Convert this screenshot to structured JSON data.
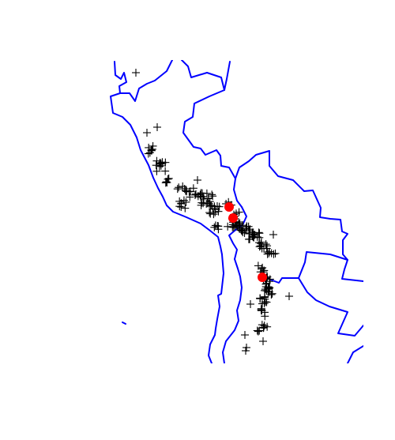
{
  "map": {
    "border_color": "#0000ff",
    "marker_color": "#000000",
    "highlight_color": "#ff0000",
    "marker_symbol": "plus",
    "highlight_symbol": "filled-circle",
    "marker_count": 260,
    "highlight_count": 3
  }
}
